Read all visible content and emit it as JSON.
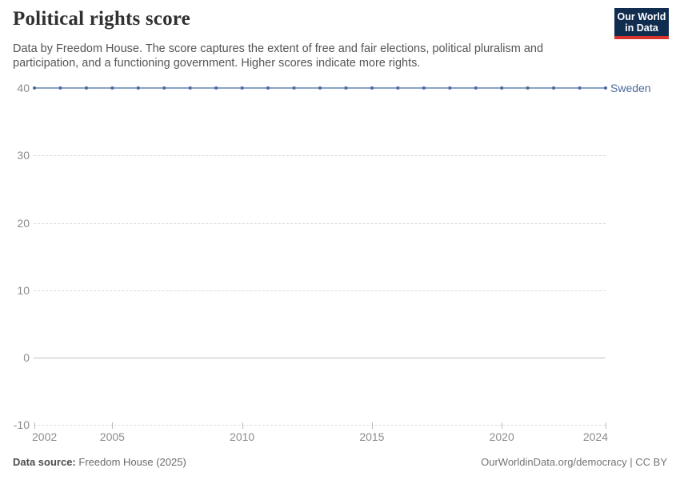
{
  "header": {
    "title": "Political rights score",
    "subtitle": "Data by Freedom House. The score captures the extent of free and fair elections, political pluralism and participation, and a functioning government. Higher scores indicate more rights."
  },
  "logo": {
    "line1": "Our World",
    "line2": "in Data",
    "bg_color": "#102D50",
    "accent_color": "#D8352E"
  },
  "chart_data": {
    "type": "line",
    "title": "Political rights score",
    "x": [
      2002,
      2003,
      2004,
      2005,
      2006,
      2007,
      2008,
      2009,
      2010,
      2011,
      2012,
      2013,
      2014,
      2015,
      2016,
      2017,
      2018,
      2019,
      2020,
      2021,
      2022,
      2023,
      2024
    ],
    "series": [
      {
        "name": "Sweden",
        "line_color": "#8AA2C5",
        "point_color": "#4A689C",
        "label_color": "#4C6A9C",
        "values": [
          40,
          40,
          40,
          40,
          40,
          40,
          40,
          40,
          40,
          40,
          40,
          40,
          40,
          40,
          40,
          40,
          40,
          40,
          40,
          40,
          40,
          40,
          40
        ]
      }
    ],
    "xlim": [
      2002,
      2024
    ],
    "ylim": [
      -10,
      40
    ],
    "yticks": [
      40,
      30,
      20,
      10,
      0,
      -10
    ],
    "xticks": [
      2002,
      2005,
      2010,
      2015,
      2020,
      2024
    ],
    "grid": "horizontal-dashed",
    "legend_position": "line-end-label",
    "grid_color": "#DCDCDC",
    "zero_line_color": "#C2C2C2",
    "axis_label_color": "#8C8C8C"
  },
  "footer": {
    "source_label": "Data source:",
    "source_value": "Freedom House (2025)",
    "credit": "OurWorldinData.org/democracy | CC BY"
  }
}
